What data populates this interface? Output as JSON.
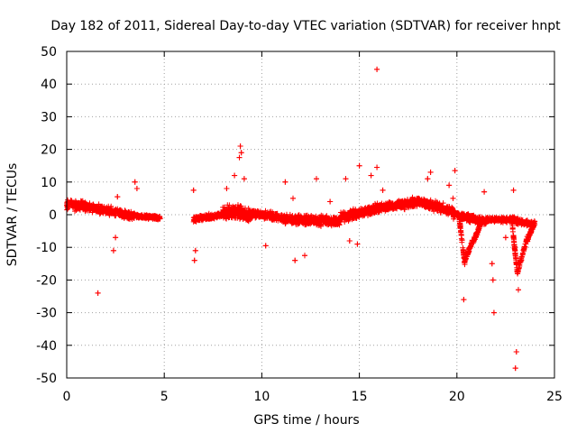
{
  "chart_data": {
    "type": "scatter",
    "title": "Day 182 of 2011, Sidereal Day-to-day VTEC variation (SDTVAR) for receiver hnpt",
    "xlabel": "GPS time / hours",
    "ylabel": "SDTVAR / TECUs",
    "xlim": [
      0,
      25
    ],
    "ylim": [
      -50,
      50
    ],
    "xticks": [
      0,
      5,
      10,
      15,
      20,
      25
    ],
    "yticks": [
      -50,
      -40,
      -30,
      -20,
      -10,
      0,
      10,
      20,
      30,
      40,
      50
    ],
    "grid": true,
    "marker": "+",
    "color": "#ff0000",
    "series": [
      {
        "name": "SDTVAR",
        "segments": [
          {
            "x0": 0.0,
            "x1": 1.0,
            "y0": 3.0,
            "y1": 2.5,
            "spread": 2.0
          },
          {
            "x0": 1.0,
            "x1": 2.3,
            "y0": 2.5,
            "y1": 1.0,
            "spread": 1.8
          },
          {
            "x0": 2.3,
            "x1": 3.5,
            "y0": 1.0,
            "y1": -0.5,
            "spread": 1.5
          },
          {
            "x0": 3.5,
            "x1": 4.8,
            "y0": -0.5,
            "y1": -1.0,
            "spread": 0.8
          },
          {
            "x0": 6.5,
            "x1": 8.0,
            "y0": -1.5,
            "y1": 0.0,
            "spread": 1.2
          },
          {
            "x0": 8.0,
            "x1": 9.5,
            "y0": 1.0,
            "y1": 0.0,
            "spread": 3.0
          },
          {
            "x0": 9.5,
            "x1": 11.5,
            "y0": 0.5,
            "y1": -1.5,
            "spread": 1.8
          },
          {
            "x0": 11.5,
            "x1": 14.0,
            "y0": -1.5,
            "y1": -2.0,
            "spread": 2.0
          },
          {
            "x0": 14.0,
            "x1": 16.0,
            "y0": -1.0,
            "y1": 2.0,
            "spread": 2.0
          },
          {
            "x0": 16.0,
            "x1": 18.0,
            "y0": 2.0,
            "y1": 4.0,
            "spread": 2.0
          },
          {
            "x0": 18.0,
            "x1": 19.8,
            "y0": 4.0,
            "y1": 1.0,
            "spread": 2.0
          },
          {
            "x0": 19.8,
            "x1": 21.5,
            "y0": 0.0,
            "y1": -2.0,
            "spread": 1.5
          },
          {
            "x0": 21.5,
            "x1": 23.0,
            "y0": -1.5,
            "y1": -1.5,
            "spread": 1.0
          },
          {
            "x0": 23.0,
            "x1": 24.0,
            "y0": -2.0,
            "y1": -3.0,
            "spread": 1.2
          }
        ],
        "outliers": [
          [
            1.6,
            -24
          ],
          [
            2.4,
            -11
          ],
          [
            2.5,
            -7
          ],
          [
            2.6,
            5.5
          ],
          [
            3.5,
            10
          ],
          [
            3.6,
            8
          ],
          [
            6.5,
            7.5
          ],
          [
            6.6,
            -11
          ],
          [
            6.55,
            -14
          ],
          [
            8.2,
            8
          ],
          [
            8.6,
            12
          ],
          [
            8.85,
            17.5
          ],
          [
            8.9,
            21
          ],
          [
            8.95,
            19
          ],
          [
            9.1,
            11
          ],
          [
            10.2,
            -9.5
          ],
          [
            11.2,
            10
          ],
          [
            11.6,
            5
          ],
          [
            11.7,
            -14
          ],
          [
            12.2,
            -12.5
          ],
          [
            12.8,
            11
          ],
          [
            13.5,
            4
          ],
          [
            14.3,
            11
          ],
          [
            14.5,
            -8
          ],
          [
            14.9,
            -9
          ],
          [
            15.0,
            15
          ],
          [
            15.6,
            12
          ],
          [
            15.9,
            14.5
          ],
          [
            15.9,
            44.5
          ],
          [
            16.2,
            7.5
          ],
          [
            18.5,
            11
          ],
          [
            18.65,
            13
          ],
          [
            19.6,
            9
          ],
          [
            19.8,
            5
          ],
          [
            19.9,
            13.5
          ],
          [
            20.35,
            -26
          ],
          [
            21.4,
            7
          ],
          [
            21.8,
            -15
          ],
          [
            21.85,
            -20
          ],
          [
            21.9,
            -30
          ],
          [
            22.5,
            -7
          ],
          [
            22.9,
            7.5
          ],
          [
            23.0,
            -47
          ],
          [
            23.05,
            -42
          ],
          [
            23.15,
            -23
          ],
          [
            23.3,
            -14
          ]
        ],
        "streaks": [
          {
            "x0": 20.1,
            "x1": 20.4,
            "y0": 0,
            "y1": -15
          },
          {
            "x0": 20.4,
            "x1": 20.8,
            "y0": -14,
            "y1": -8
          },
          {
            "x0": 20.8,
            "x1": 21.2,
            "y0": -9,
            "y1": -3
          },
          {
            "x0": 22.8,
            "x1": 23.1,
            "y0": -1,
            "y1": -18
          },
          {
            "x0": 23.1,
            "x1": 23.6,
            "y0": -18,
            "y1": -7
          },
          {
            "x0": 23.6,
            "x1": 24.0,
            "y0": -8,
            "y1": -2
          }
        ]
      }
    ]
  }
}
